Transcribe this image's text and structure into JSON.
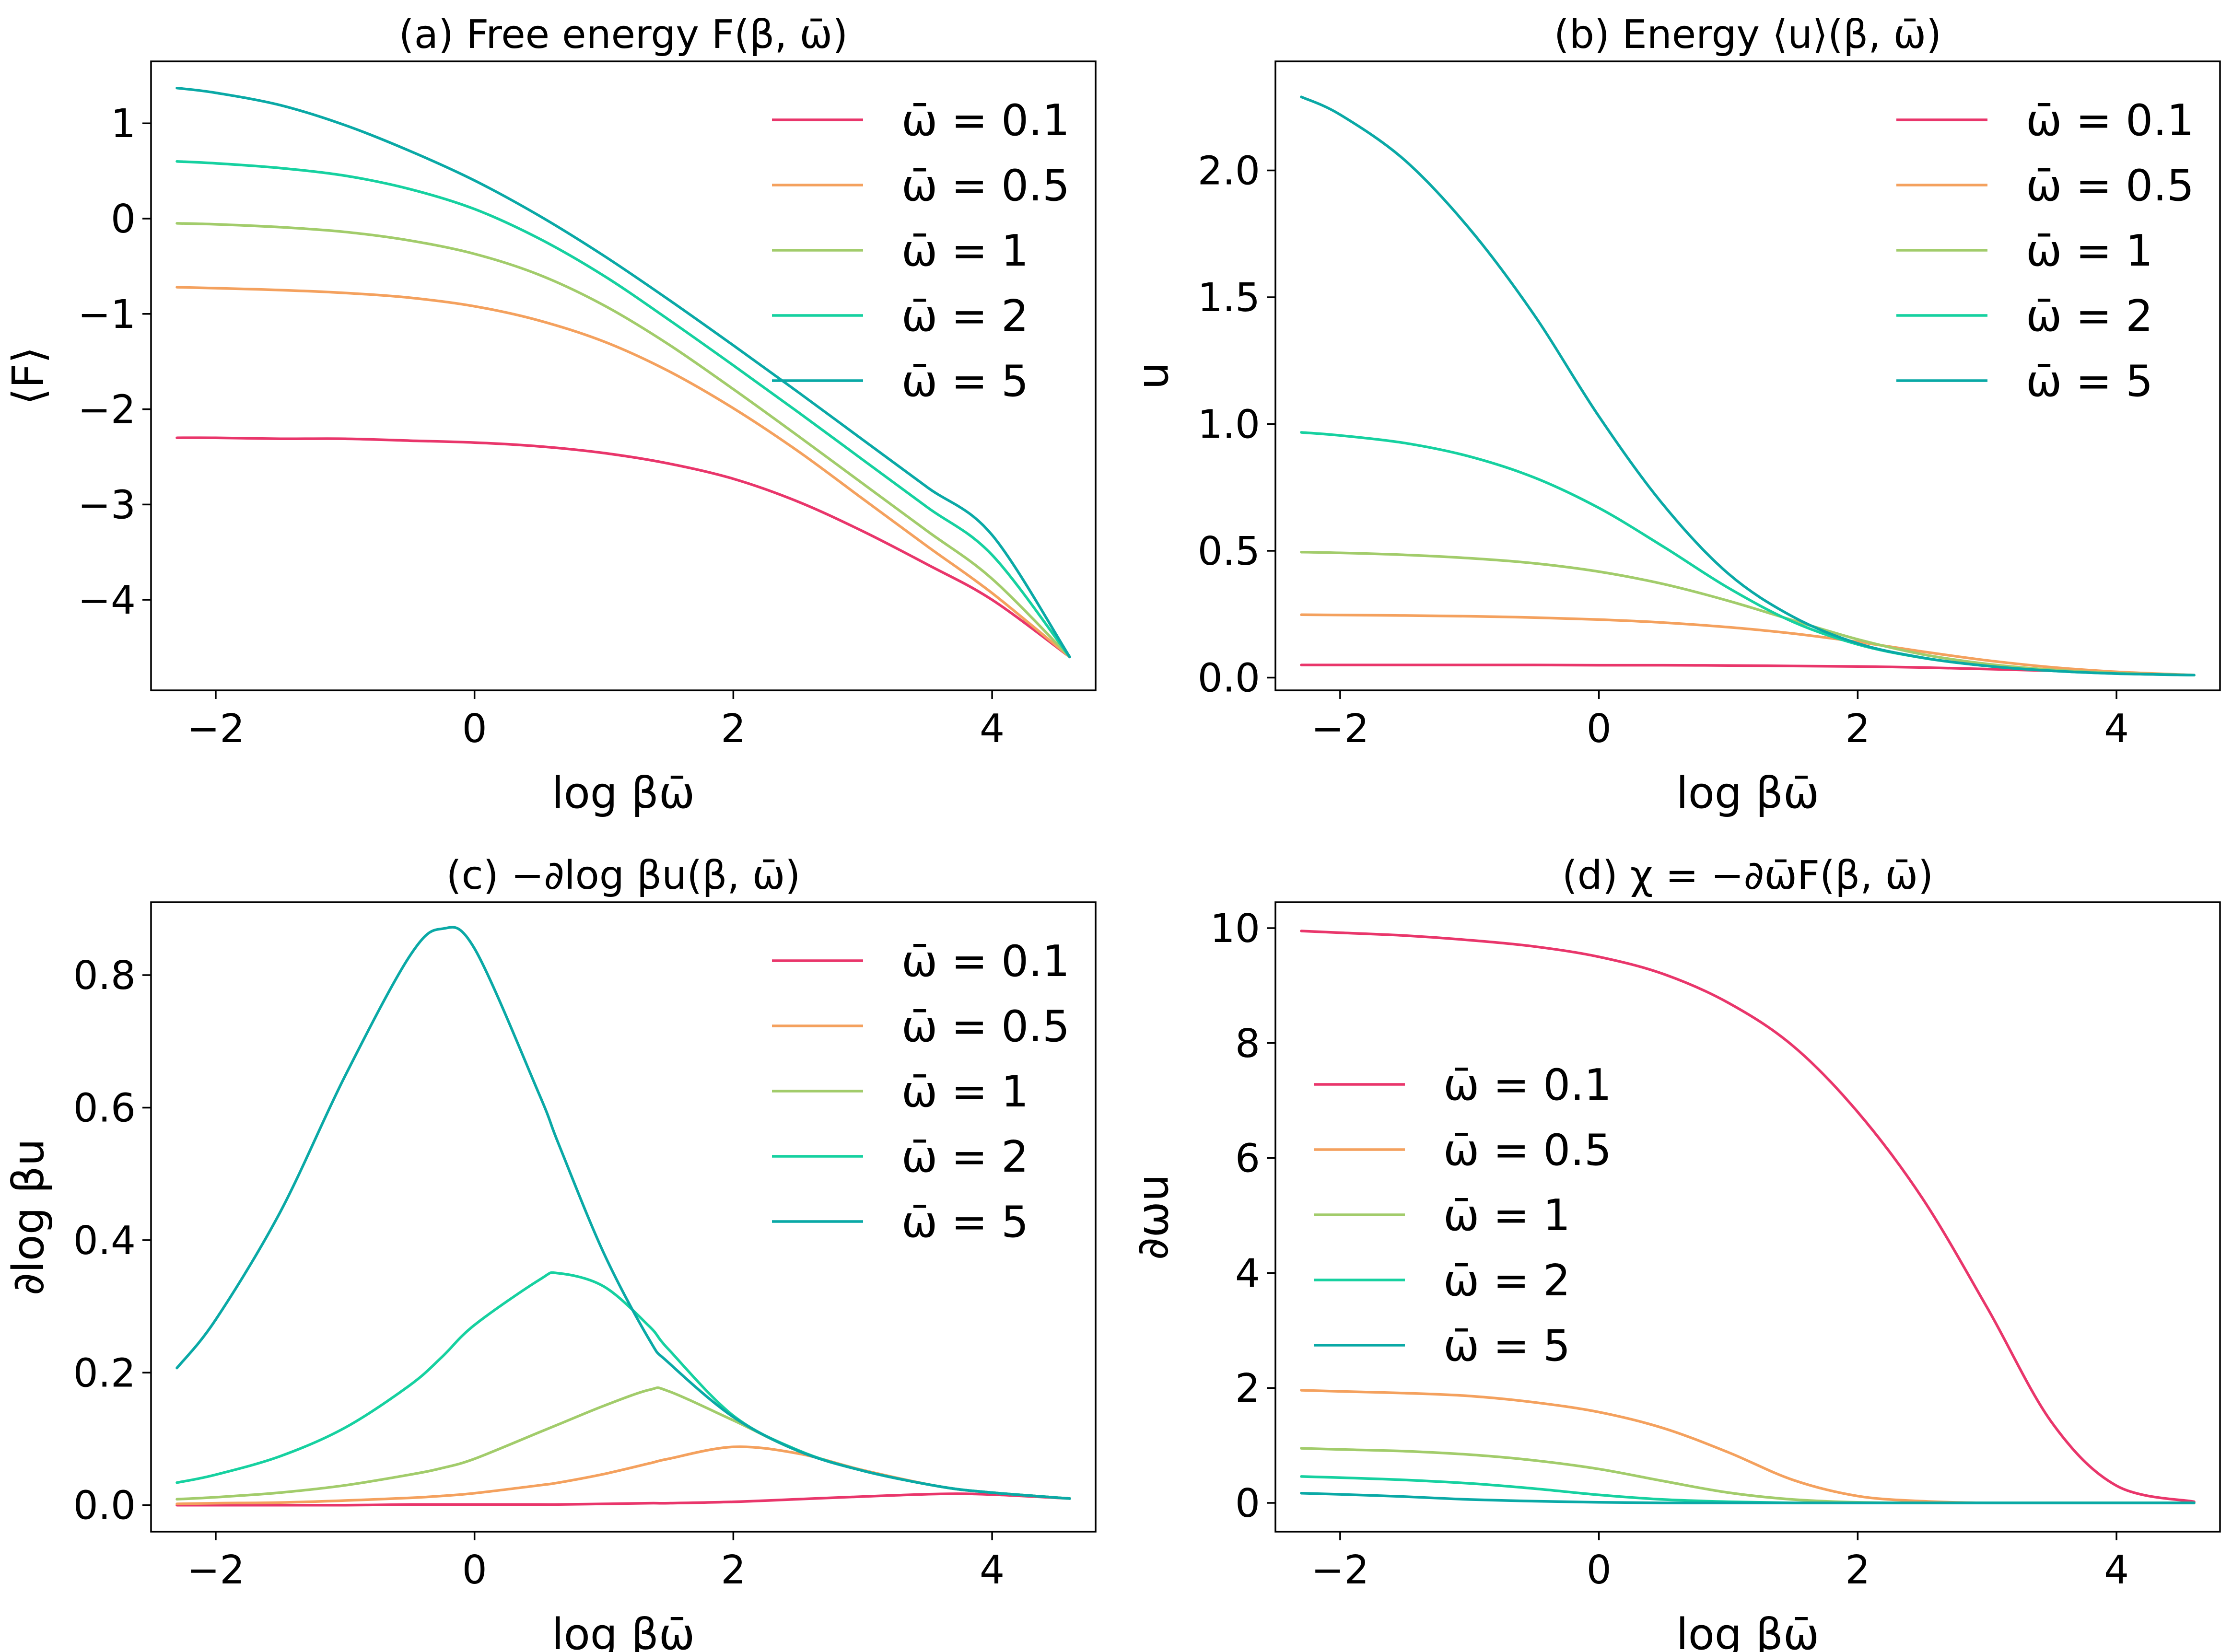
{
  "colors": {
    "w0_1": "#e9366b",
    "w0_5": "#f4a15e",
    "w1": "#a2cc6b",
    "w2": "#16d1a0",
    "w5": "#0aa9a6"
  },
  "chart_data": [
    {
      "id": "a",
      "type": "line",
      "title": "(a) Free energy F(β, ω̄)",
      "xlabel": "log βω̄",
      "ylabel": "⟨F⟩",
      "xlim": [
        -2.5,
        4.8
      ],
      "ylim": [
        -4.95,
        1.65
      ],
      "xticks": [
        -2,
        0,
        2,
        4
      ],
      "xtick_labels": [
        "−2",
        "0",
        "2",
        "4"
      ],
      "yticks": [
        -4,
        -3,
        -2,
        -1,
        0,
        1
      ],
      "ytick_labels": [
        "−4",
        "−3",
        "−2",
        "−1",
        "0",
        "1"
      ],
      "legend_position": "top-right",
      "x": [
        -2.3,
        -2.0,
        -1.5,
        -1.0,
        -0.5,
        0.0,
        0.5,
        1.0,
        1.5,
        2.0,
        2.5,
        3.0,
        3.5,
        4.0,
        4.6
      ],
      "series": [
        {
          "name": "ω̄ = 0.1",
          "color_key": "w0_1",
          "values": [
            -2.3,
            -2.3,
            -2.31,
            -2.31,
            -2.33,
            -2.35,
            -2.39,
            -2.46,
            -2.57,
            -2.73,
            -2.97,
            -3.28,
            -3.63,
            -4.0,
            -4.6
          ]
        },
        {
          "name": "ω̄ = 0.5",
          "color_key": "w0_5",
          "values": [
            -0.72,
            -0.73,
            -0.75,
            -0.78,
            -0.83,
            -0.92,
            -1.07,
            -1.29,
            -1.6,
            -1.99,
            -2.44,
            -2.94,
            -3.44,
            -3.93,
            -4.6
          ]
        },
        {
          "name": "ω̄ = 1",
          "color_key": "w1",
          "values": [
            -0.05,
            -0.06,
            -0.09,
            -0.14,
            -0.23,
            -0.37,
            -0.59,
            -0.91,
            -1.32,
            -1.79,
            -2.28,
            -2.78,
            -3.28,
            -3.78,
            -4.6
          ]
        },
        {
          "name": "ω̄ = 2",
          "color_key": "w2",
          "values": [
            0.6,
            0.58,
            0.53,
            0.45,
            0.31,
            0.1,
            -0.21,
            -0.6,
            -1.06,
            -1.54,
            -2.03,
            -2.53,
            -3.03,
            -3.53,
            -4.6
          ]
        },
        {
          "name": "ω̄ = 5",
          "color_key": "w5",
          "values": [
            1.37,
            1.32,
            1.19,
            0.98,
            0.71,
            0.4,
            0.03,
            -0.39,
            -0.85,
            -1.33,
            -1.82,
            -2.32,
            -2.82,
            -3.32,
            -4.6
          ]
        }
      ]
    },
    {
      "id": "b",
      "type": "line",
      "title": "(b) Energy ⟨u⟩(β, ω̄)",
      "xlabel": "log βω̄",
      "ylabel": "u",
      "xlim": [
        -2.5,
        4.8
      ],
      "ylim": [
        -0.05,
        2.43
      ],
      "xticks": [
        -2,
        0,
        2,
        4
      ],
      "xtick_labels": [
        "−2",
        "0",
        "2",
        "4"
      ],
      "yticks": [
        0.0,
        0.5,
        1.0,
        1.5,
        2.0
      ],
      "ytick_labels": [
        "0.0",
        "0.5",
        "1.0",
        "1.5",
        "2.0"
      ],
      "legend_position": "top-right",
      "x": [
        -2.3,
        -2.0,
        -1.5,
        -1.0,
        -0.5,
        0.0,
        0.5,
        1.0,
        1.5,
        2.0,
        2.5,
        3.0,
        3.5,
        4.0,
        4.6
      ],
      "series": [
        {
          "name": "ω̄ = 0.1",
          "color_key": "w0_1",
          "values": [
            0.05,
            0.05,
            0.05,
            0.05,
            0.05,
            0.049,
            0.049,
            0.048,
            0.046,
            0.044,
            0.04,
            0.034,
            0.027,
            0.019,
            0.01
          ]
        },
        {
          "name": "ω̄ = 0.5",
          "color_key": "w0_5",
          "values": [
            0.248,
            0.247,
            0.245,
            0.242,
            0.237,
            0.229,
            0.217,
            0.199,
            0.174,
            0.141,
            0.103,
            0.068,
            0.041,
            0.023,
            0.01
          ]
        },
        {
          "name": "ω̄ = 1",
          "color_key": "w1",
          "values": [
            0.495,
            0.492,
            0.484,
            0.471,
            0.451,
            0.418,
            0.369,
            0.303,
            0.226,
            0.151,
            0.092,
            0.054,
            0.031,
            0.018,
            0.01
          ]
        },
        {
          "name": "ω̄ = 2",
          "color_key": "w2",
          "values": [
            0.967,
            0.955,
            0.925,
            0.872,
            0.789,
            0.669,
            0.516,
            0.354,
            0.22,
            0.131,
            0.078,
            0.046,
            0.027,
            0.016,
            0.01
          ]
        },
        {
          "name": "ω̄ = 5",
          "color_key": "w5",
          "values": [
            2.29,
            2.22,
            2.04,
            1.77,
            1.43,
            1.03,
            0.68,
            0.41,
            0.24,
            0.135,
            0.079,
            0.046,
            0.027,
            0.016,
            0.01
          ]
        }
      ]
    },
    {
      "id": "c",
      "type": "line",
      "title": "(c) −∂log βu(β, ω̄)",
      "xlabel": "log βω̄",
      "ylabel": "∂log βu",
      "xlim": [
        -2.5,
        4.8
      ],
      "ylim": [
        -0.04,
        0.91
      ],
      "xticks": [
        -2,
        0,
        2,
        4
      ],
      "xtick_labels": [
        "−2",
        "0",
        "2",
        "4"
      ],
      "yticks": [
        0.0,
        0.2,
        0.4,
        0.6,
        0.8
      ],
      "ytick_labels": [
        "0.0",
        "0.2",
        "0.4",
        "0.6",
        "0.8"
      ],
      "legend_position": "top-right",
      "x": [
        -2.3,
        -2.0,
        -1.5,
        -1.0,
        -0.5,
        -0.25,
        0.0,
        0.5,
        0.65,
        1.0,
        1.35,
        1.5,
        2.0,
        2.5,
        3.0,
        3.6,
        4.0,
        4.6
      ],
      "series": [
        {
          "name": "ω̄ = 0.1",
          "color_key": "w0_1",
          "values": [
            0.0,
            0.0,
            0.0,
            0.0,
            0.001,
            0.001,
            0.001,
            0.001,
            0.001,
            0.002,
            0.003,
            0.003,
            0.005,
            0.009,
            0.013,
            0.017,
            0.016,
            0.01
          ]
        },
        {
          "name": "ω̄ = 0.5",
          "color_key": "w0_5",
          "values": [
            0.002,
            0.003,
            0.004,
            0.007,
            0.011,
            0.014,
            0.018,
            0.03,
            0.034,
            0.047,
            0.063,
            0.07,
            0.088,
            0.078,
            0.053,
            0.028,
            0.019,
            0.01
          ]
        },
        {
          "name": "ω̄ = 1",
          "color_key": "w1",
          "values": [
            0.009,
            0.012,
            0.019,
            0.03,
            0.046,
            0.056,
            0.07,
            0.11,
            0.122,
            0.15,
            0.174,
            0.172,
            0.128,
            0.082,
            0.052,
            0.028,
            0.019,
            0.01
          ]
        },
        {
          "name": "ω̄ = 2",
          "color_key": "w2",
          "values": [
            0.034,
            0.046,
            0.074,
            0.117,
            0.181,
            0.224,
            0.272,
            0.34,
            0.35,
            0.33,
            0.27,
            0.235,
            0.135,
            0.083,
            0.052,
            0.028,
            0.019,
            0.01
          ]
        },
        {
          "name": "ω̄ = 5",
          "color_key": "w5",
          "values": [
            0.207,
            0.28,
            0.443,
            0.648,
            0.829,
            0.87,
            0.84,
            0.62,
            0.545,
            0.38,
            0.25,
            0.215,
            0.133,
            0.082,
            0.052,
            0.028,
            0.019,
            0.01
          ]
        }
      ]
    },
    {
      "id": "d",
      "type": "line",
      "title": "(d) χ = −∂ω̄F(β, ω̄)",
      "xlabel": "log βω̄",
      "ylabel": "∂ωu",
      "xlim": [
        -2.5,
        4.8
      ],
      "ylim": [
        -0.5,
        10.45
      ],
      "xticks": [
        -2,
        0,
        2,
        4
      ],
      "xtick_labels": [
        "−2",
        "0",
        "2",
        "4"
      ],
      "yticks": [
        0,
        2,
        4,
        6,
        8,
        10
      ],
      "ytick_labels": [
        "0",
        "2",
        "4",
        "6",
        "8",
        "10"
      ],
      "legend_position": "center-left",
      "x": [
        -2.3,
        -2.0,
        -1.5,
        -1.0,
        -0.5,
        0.0,
        0.5,
        1.0,
        1.5,
        2.0,
        2.5,
        3.0,
        3.5,
        4.0,
        4.6
      ],
      "series": [
        {
          "name": "ω̄ = 0.1",
          "color_key": "w0_1",
          "values": [
            9.95,
            9.92,
            9.87,
            9.79,
            9.68,
            9.5,
            9.2,
            8.7,
            7.95,
            6.8,
            5.3,
            3.4,
            1.4,
            0.3,
            0.02
          ]
        },
        {
          "name": "ω̄ = 0.5",
          "color_key": "w0_5",
          "values": [
            1.96,
            1.94,
            1.91,
            1.86,
            1.75,
            1.58,
            1.3,
            0.88,
            0.4,
            0.12,
            0.03,
            0.0,
            0.0,
            0.0,
            0.0
          ]
        },
        {
          "name": "ω̄ = 1",
          "color_key": "w1",
          "values": [
            0.95,
            0.93,
            0.9,
            0.84,
            0.74,
            0.59,
            0.38,
            0.18,
            0.06,
            0.01,
            0.0,
            0.0,
            0.0,
            0.0,
            0.0
          ]
        },
        {
          "name": "ω̄ = 2",
          "color_key": "w2",
          "values": [
            0.46,
            0.44,
            0.4,
            0.34,
            0.25,
            0.14,
            0.06,
            0.02,
            0.0,
            0.0,
            0.0,
            0.0,
            0.0,
            0.0,
            0.0
          ]
        },
        {
          "name": "ω̄ = 5",
          "color_key": "w5",
          "values": [
            0.17,
            0.15,
            0.11,
            0.06,
            0.03,
            0.01,
            0.0,
            0.0,
            0.0,
            0.0,
            0.0,
            0.0,
            0.0,
            0.0,
            0.0
          ]
        }
      ]
    }
  ]
}
